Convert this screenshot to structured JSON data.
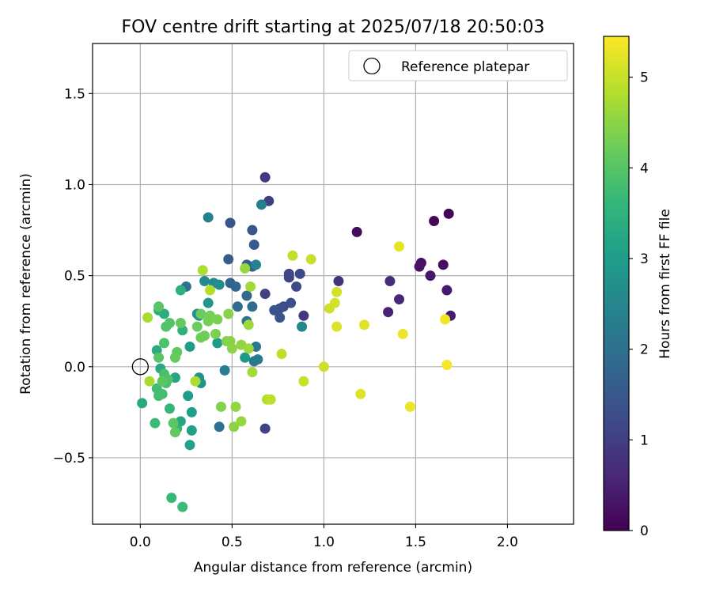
{
  "chart_data": {
    "type": "scatter",
    "title": "FOV centre drift starting at 2025/07/18 20:50:03",
    "xlabel": "Angular distance from reference (arcmin)",
    "ylabel": "Rotation from reference (arcmin)",
    "xlim": [
      -0.26,
      2.36
    ],
    "ylim": [
      -0.865,
      1.775
    ],
    "xticks": [
      0.0,
      0.5,
      1.0,
      1.5,
      2.0
    ],
    "xtick_labels": [
      "0.0",
      "0.5",
      "1.0",
      "1.5",
      "2.0"
    ],
    "yticks": [
      -0.5,
      0.0,
      0.5,
      1.0,
      1.5
    ],
    "ytick_labels": [
      "−0.5",
      "0.0",
      "0.5",
      "1.0",
      "1.5"
    ],
    "grid": true,
    "legend": {
      "position": "top-right",
      "entries": [
        {
          "label": "Reference platepar",
          "marker": "open-circle"
        }
      ]
    },
    "reference_point": {
      "x": 0.0,
      "y": 0.0
    },
    "colorbar": {
      "label": "Hours from first FF file",
      "colormap": "viridis",
      "range": [
        0,
        5.45
      ],
      "ticks": [
        0,
        1,
        2,
        3,
        4,
        5
      ],
      "tick_labels": [
        "0",
        "1",
        "2",
        "3",
        "4",
        "5"
      ]
    },
    "series": [
      {
        "color_by": "hours",
        "points": [
          {
            "x": 1.68,
            "y": 0.84,
            "h": 0.05
          },
          {
            "x": 1.6,
            "y": 0.8,
            "h": 0.1
          },
          {
            "x": 1.18,
            "y": 0.74,
            "h": 0.15
          },
          {
            "x": 1.65,
            "y": 0.56,
            "h": 0.2
          },
          {
            "x": 1.53,
            "y": 0.57,
            "h": 0.25
          },
          {
            "x": 1.52,
            "y": 0.55,
            "h": 0.3
          },
          {
            "x": 1.58,
            "y": 0.5,
            "h": 0.35
          },
          {
            "x": 1.67,
            "y": 0.42,
            "h": 0.4
          },
          {
            "x": 1.69,
            "y": 0.28,
            "h": 0.45
          },
          {
            "x": 1.35,
            "y": 0.3,
            "h": 0.5
          },
          {
            "x": 1.41,
            "y": 0.37,
            "h": 0.6
          },
          {
            "x": 1.36,
            "y": 0.47,
            "h": 0.7
          },
          {
            "x": 1.08,
            "y": 0.47,
            "h": 0.8
          },
          {
            "x": 0.89,
            "y": 0.28,
            "h": 0.85
          },
          {
            "x": 0.68,
            "y": 1.04,
            "h": 0.9
          },
          {
            "x": 0.7,
            "y": 0.91,
            "h": 1.0
          },
          {
            "x": 0.68,
            "y": 0.4,
            "h": 1.05
          },
          {
            "x": 0.68,
            "y": -0.34,
            "h": 1.1
          },
          {
            "x": 0.81,
            "y": 0.49,
            "h": 1.1
          },
          {
            "x": 0.81,
            "y": 0.51,
            "h": 1.15
          },
          {
            "x": 0.87,
            "y": 0.51,
            "h": 1.2
          },
          {
            "x": 0.85,
            "y": 0.44,
            "h": 1.2
          },
          {
            "x": 0.78,
            "y": 0.33,
            "h": 1.25
          },
          {
            "x": 0.82,
            "y": 0.35,
            "h": 1.3
          },
          {
            "x": 0.76,
            "y": 0.32,
            "h": 1.35
          },
          {
            "x": 0.73,
            "y": 0.31,
            "h": 1.4
          },
          {
            "x": 0.76,
            "y": 0.27,
            "h": 1.4
          },
          {
            "x": 0.49,
            "y": 0.79,
            "h": 1.45
          },
          {
            "x": 0.61,
            "y": 0.75,
            "h": 1.5
          },
          {
            "x": 0.62,
            "y": 0.67,
            "h": 1.55
          },
          {
            "x": 0.48,
            "y": 0.59,
            "h": 1.6
          },
          {
            "x": 0.58,
            "y": 0.56,
            "h": 1.65
          },
          {
            "x": 0.61,
            "y": 0.55,
            "h": 1.7
          },
          {
            "x": 0.49,
            "y": 0.46,
            "h": 1.75
          },
          {
            "x": 0.52,
            "y": 0.44,
            "h": 1.8
          },
          {
            "x": 0.58,
            "y": 0.39,
            "h": 1.85
          },
          {
            "x": 0.53,
            "y": 0.33,
            "h": 1.9
          },
          {
            "x": 0.61,
            "y": 0.33,
            "h": 1.95
          },
          {
            "x": 0.25,
            "y": 0.44,
            "h": 2.0
          },
          {
            "x": 0.43,
            "y": -0.33,
            "h": 2.05
          },
          {
            "x": 0.58,
            "y": 0.25,
            "h": 2.1
          },
          {
            "x": 0.63,
            "y": 0.11,
            "h": 2.15
          },
          {
            "x": 0.62,
            "y": 0.03,
            "h": 2.2
          },
          {
            "x": 0.64,
            "y": 0.04,
            "h": 2.25
          },
          {
            "x": 0.46,
            "y": -0.02,
            "h": 2.3
          },
          {
            "x": 0.66,
            "y": 0.89,
            "h": 2.35
          },
          {
            "x": 0.37,
            "y": 0.82,
            "h": 2.4
          },
          {
            "x": 0.63,
            "y": 0.56,
            "h": 2.45
          },
          {
            "x": 0.88,
            "y": 0.22,
            "h": 2.5
          },
          {
            "x": 0.35,
            "y": 0.47,
            "h": 2.55
          },
          {
            "x": 0.4,
            "y": 0.46,
            "h": 2.6
          },
          {
            "x": 0.43,
            "y": 0.45,
            "h": 2.65
          },
          {
            "x": 0.31,
            "y": 0.29,
            "h": 2.7
          },
          {
            "x": 0.32,
            "y": -0.06,
            "h": 2.75
          },
          {
            "x": 0.33,
            "y": -0.09,
            "h": 2.8
          },
          {
            "x": 0.32,
            "y": 0.28,
            "h": 2.8
          },
          {
            "x": 0.37,
            "y": 0.35,
            "h": 2.85
          },
          {
            "x": 0.57,
            "y": 0.05,
            "h": 2.9
          },
          {
            "x": 0.42,
            "y": 0.13,
            "h": 2.95
          },
          {
            "x": 0.27,
            "y": 0.11,
            "h": 3.0
          },
          {
            "x": 0.26,
            "y": -0.16,
            "h": 3.0
          },
          {
            "x": 0.28,
            "y": -0.25,
            "h": 3.05
          },
          {
            "x": 0.28,
            "y": -0.35,
            "h": 3.1
          },
          {
            "x": 0.27,
            "y": -0.43,
            "h": 3.15
          },
          {
            "x": 0.22,
            "y": -0.3,
            "h": 3.2
          },
          {
            "x": 0.19,
            "y": -0.06,
            "h": 3.2
          },
          {
            "x": 0.11,
            "y": -0.01,
            "h": 3.25
          },
          {
            "x": 0.01,
            "y": -0.2,
            "h": 3.3
          },
          {
            "x": 0.09,
            "y": 0.09,
            "h": 3.35
          },
          {
            "x": 0.1,
            "y": 0.31,
            "h": 3.4
          },
          {
            "x": 0.13,
            "y": 0.29,
            "h": 3.4
          },
          {
            "x": 0.22,
            "y": 0.42,
            "h": 3.45
          },
          {
            "x": 0.23,
            "y": 0.2,
            "h": 3.5
          },
          {
            "x": 0.2,
            "y": -0.34,
            "h": 3.55
          },
          {
            "x": 0.16,
            "y": -0.23,
            "h": 3.6
          },
          {
            "x": 0.17,
            "y": -0.72,
            "h": 3.65
          },
          {
            "x": 0.23,
            "y": -0.77,
            "h": 3.7
          },
          {
            "x": 0.08,
            "y": -0.31,
            "h": 3.7
          },
          {
            "x": 0.09,
            "y": -0.12,
            "h": 3.75
          },
          {
            "x": 0.1,
            "y": -0.16,
            "h": 3.8
          },
          {
            "x": 0.12,
            "y": -0.15,
            "h": 3.8
          },
          {
            "x": 0.13,
            "y": -0.04,
            "h": 3.85
          },
          {
            "x": 0.14,
            "y": -0.09,
            "h": 3.85
          },
          {
            "x": 0.15,
            "y": -0.07,
            "h": 3.9
          },
          {
            "x": 0.13,
            "y": 0.13,
            "h": 3.9
          },
          {
            "x": 0.14,
            "y": 0.22,
            "h": 3.95
          },
          {
            "x": 0.16,
            "y": 0.24,
            "h": 3.95
          },
          {
            "x": 0.1,
            "y": 0.33,
            "h": 4.0
          },
          {
            "x": 0.1,
            "y": 0.05,
            "h": 4.0
          },
          {
            "x": 0.12,
            "y": -0.08,
            "h": 4.05
          },
          {
            "x": 0.18,
            "y": -0.31,
            "h": 4.05
          },
          {
            "x": 0.19,
            "y": -0.36,
            "h": 4.1
          },
          {
            "x": 0.2,
            "y": 0.08,
            "h": 4.1
          },
          {
            "x": 0.19,
            "y": 0.05,
            "h": 4.15
          },
          {
            "x": 0.22,
            "y": 0.24,
            "h": 4.15
          },
          {
            "x": 0.31,
            "y": 0.22,
            "h": 4.2
          },
          {
            "x": 0.33,
            "y": 0.29,
            "h": 4.2
          },
          {
            "x": 0.33,
            "y": 0.16,
            "h": 4.25
          },
          {
            "x": 0.35,
            "y": 0.17,
            "h": 4.25
          },
          {
            "x": 0.37,
            "y": 0.25,
            "h": 4.3
          },
          {
            "x": 0.38,
            "y": 0.28,
            "h": 4.3
          },
          {
            "x": 0.41,
            "y": 0.18,
            "h": 4.35
          },
          {
            "x": 0.42,
            "y": 0.26,
            "h": 4.35
          },
          {
            "x": 0.44,
            "y": -0.22,
            "h": 4.4
          },
          {
            "x": 0.47,
            "y": 0.14,
            "h": 4.4
          },
          {
            "x": 0.48,
            "y": 0.29,
            "h": 4.45
          },
          {
            "x": 0.49,
            "y": 0.14,
            "h": 4.45
          },
          {
            "x": 0.5,
            "y": 0.1,
            "h": 4.5
          },
          {
            "x": 0.51,
            "y": -0.33,
            "h": 4.5
          },
          {
            "x": 0.52,
            "y": -0.22,
            "h": 4.55
          },
          {
            "x": 0.55,
            "y": 0.12,
            "h": 4.55
          },
          {
            "x": 0.55,
            "y": -0.3,
            "h": 4.6
          },
          {
            "x": 0.57,
            "y": 0.54,
            "h": 4.6
          },
          {
            "x": 0.59,
            "y": 0.1,
            "h": 4.65
          },
          {
            "x": 0.59,
            "y": 0.23,
            "h": 4.65
          },
          {
            "x": 0.6,
            "y": 0.44,
            "h": 4.7
          },
          {
            "x": 0.61,
            "y": -0.03,
            "h": 4.7
          },
          {
            "x": 0.04,
            "y": 0.27,
            "h": 4.75
          },
          {
            "x": 0.05,
            "y": -0.08,
            "h": 4.75
          },
          {
            "x": 0.3,
            "y": -0.08,
            "h": 4.8
          },
          {
            "x": 0.34,
            "y": 0.53,
            "h": 4.8
          },
          {
            "x": 0.38,
            "y": 0.42,
            "h": 4.85
          },
          {
            "x": 0.69,
            "y": -0.18,
            "h": 4.85
          },
          {
            "x": 0.71,
            "y": -0.18,
            "h": 4.9
          },
          {
            "x": 0.77,
            "y": 0.07,
            "h": 4.9
          },
          {
            "x": 0.83,
            "y": 0.61,
            "h": 4.95
          },
          {
            "x": 0.89,
            "y": -0.08,
            "h": 5.0
          },
          {
            "x": 0.93,
            "y": 0.59,
            "h": 5.0
          },
          {
            "x": 1.0,
            "y": -0.0,
            "h": 5.05
          },
          {
            "x": 1.03,
            "y": 0.32,
            "h": 5.05
          },
          {
            "x": 1.06,
            "y": 0.35,
            "h": 5.1
          },
          {
            "x": 1.07,
            "y": 0.41,
            "h": 5.1
          },
          {
            "x": 1.07,
            "y": 0.22,
            "h": 5.15
          },
          {
            "x": 1.2,
            "y": -0.15,
            "h": 5.2
          },
          {
            "x": 1.22,
            "y": 0.23,
            "h": 5.2
          },
          {
            "x": 1.41,
            "y": 0.66,
            "h": 5.25
          },
          {
            "x": 1.43,
            "y": 0.18,
            "h": 5.3
          },
          {
            "x": 1.47,
            "y": -0.22,
            "h": 5.3
          },
          {
            "x": 1.66,
            "y": 0.26,
            "h": 5.35
          },
          {
            "x": 1.67,
            "y": 0.01,
            "h": 5.4
          }
        ]
      }
    ]
  }
}
